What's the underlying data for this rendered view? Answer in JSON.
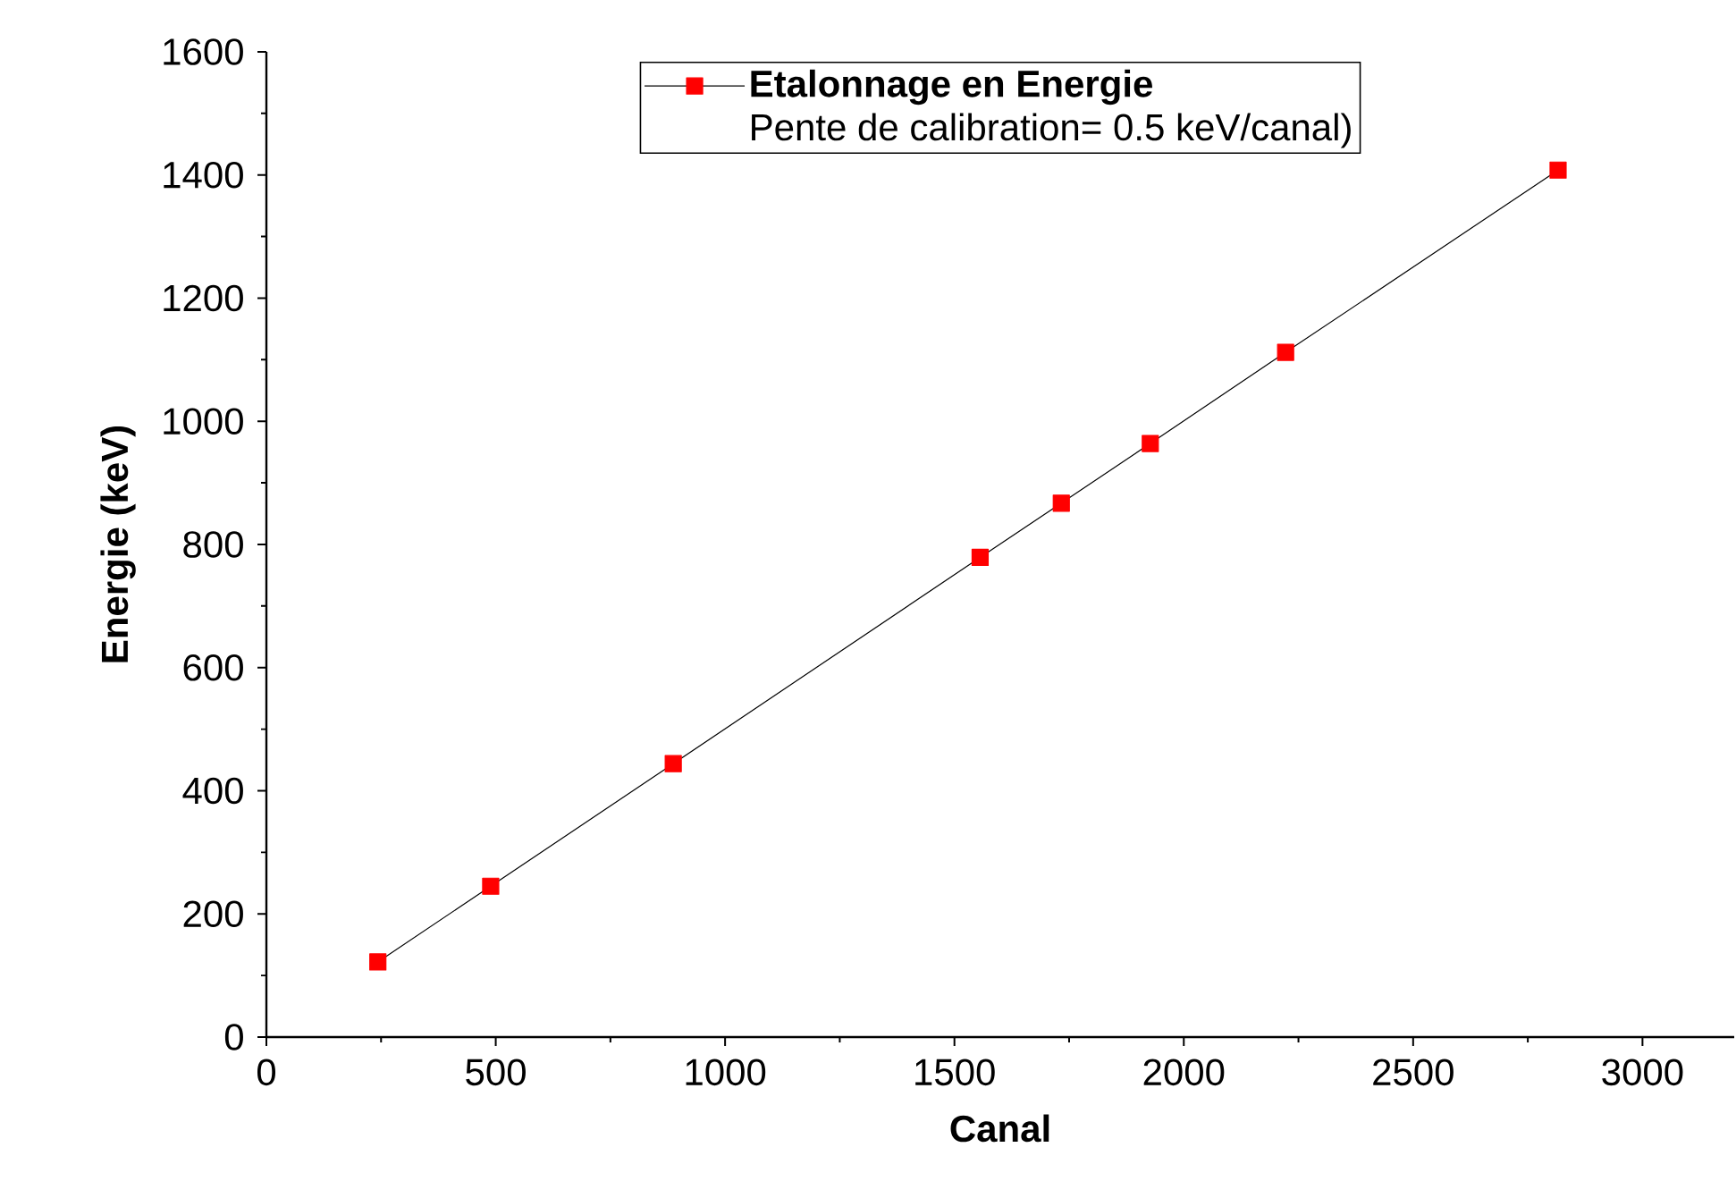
{
  "chart_data": {
    "type": "line",
    "xlabel": "Canal",
    "ylabel": "Energie (keV)",
    "x": [
      243,
      489,
      887,
      1556,
      1733,
      1927,
      2222,
      2816
    ],
    "series": [
      {
        "name": "Etalonnage en Energie",
        "color": "#ff0000",
        "values": [
          122,
          245,
          444,
          779,
          867,
          964,
          1112,
          1408
        ]
      }
    ],
    "annotations": [
      "Pente de calibration= 0.5 keV/canal)"
    ],
    "xlim": [
      0,
      3200
    ],
    "ylim": [
      0,
      1600
    ],
    "xticks": [
      0,
      500,
      1000,
      1500,
      2000,
      2500,
      3000
    ],
    "yticks": [
      0,
      200,
      400,
      600,
      800,
      1000,
      1200,
      1400,
      1600
    ],
    "marker": "square",
    "line_style": "solid",
    "legend": "top",
    "grid": false
  }
}
